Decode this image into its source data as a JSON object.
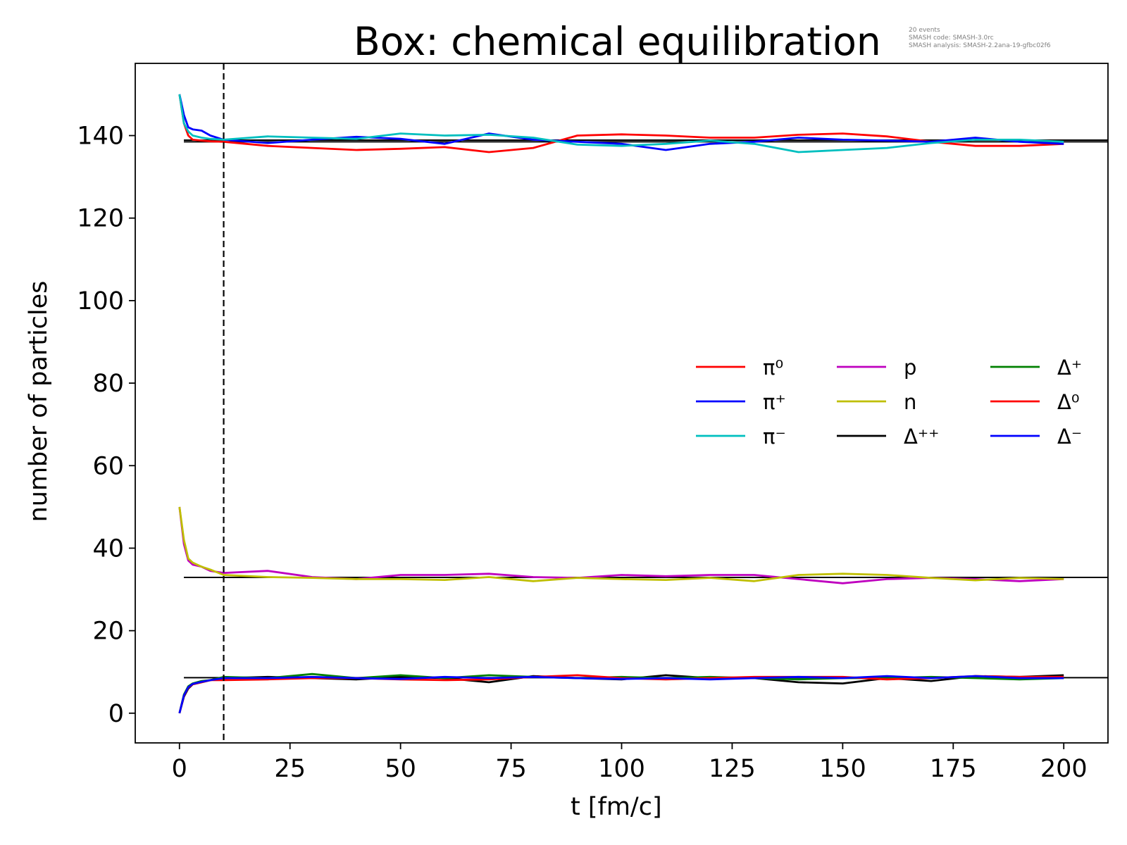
{
  "chart_data": {
    "type": "line",
    "title": "Box: chemical equilibration",
    "info_lines": [
      "20 events",
      "SMASH code:      SMASH-3.0rc",
      "SMASH analysis:  SMASH-2.2ana-19-gfbc02f6"
    ],
    "xlabel": "t [fm/c]",
    "ylabel": "number of particles",
    "xlim": [
      -10,
      210
    ],
    "ylim": [
      -7.2,
      157.5
    ],
    "xticks": [
      0,
      25,
      50,
      75,
      100,
      125,
      150,
      175,
      200
    ],
    "yticks": [
      0,
      20,
      40,
      60,
      80,
      100,
      120,
      140
    ],
    "grid": false,
    "legend_placement": "center-right",
    "legend_columns": 3,
    "vertical_marker": {
      "x": 10,
      "style": "dashed",
      "color": "#000000"
    },
    "equilibrium_lines": [
      {
        "group": "pions",
        "y": 138.5,
        "x_range": [
          1,
          210
        ],
        "color": "#000000"
      },
      {
        "group": "pions",
        "y": 138.9,
        "x_range": [
          1,
          210
        ],
        "color": "#000000"
      },
      {
        "group": "nucleons",
        "y": 32.9,
        "x_range": [
          1,
          210
        ],
        "color": "#000000"
      },
      {
        "group": "deltas",
        "y": 8.6,
        "x_range": [
          1,
          210
        ],
        "color": "#000000"
      }
    ],
    "series": [
      {
        "name": "π⁰",
        "color": "#ff0000",
        "group": "pions",
        "x": [
          0,
          1,
          2,
          3,
          5,
          7,
          10,
          20,
          30,
          40,
          50,
          60,
          70,
          80,
          90,
          100,
          110,
          120,
          130,
          140,
          150,
          160,
          170,
          180,
          190,
          200
        ],
        "y": [
          150,
          143,
          140,
          139,
          138.8,
          138.6,
          138.5,
          137.5,
          137,
          136.5,
          136.8,
          137.2,
          136,
          137,
          140,
          140.3,
          140,
          139.5,
          139.5,
          140.2,
          140.5,
          139.8,
          138.5,
          137.5,
          137.5,
          138
        ]
      },
      {
        "name": "π⁺",
        "color": "#0000ff",
        "group": "pions",
        "x": [
          0,
          1,
          2,
          3,
          5,
          7,
          10,
          20,
          30,
          40,
          50,
          60,
          70,
          80,
          90,
          100,
          110,
          120,
          130,
          140,
          150,
          160,
          170,
          180,
          190,
          200
        ],
        "y": [
          150,
          145,
          142,
          141.5,
          141.2,
          140,
          139,
          138.2,
          139,
          139.7,
          139.2,
          138,
          140.5,
          139,
          138.5,
          138,
          136.5,
          138,
          138.5,
          139.5,
          139,
          138.8,
          138.5,
          139.5,
          138.5,
          138
        ]
      },
      {
        "name": "π⁻",
        "color": "#00bfbf",
        "group": "pions",
        "x": [
          0,
          1,
          2,
          3,
          5,
          7,
          10,
          20,
          30,
          40,
          50,
          60,
          70,
          80,
          90,
          100,
          110,
          120,
          130,
          140,
          150,
          160,
          170,
          180,
          190,
          200
        ],
        "y": [
          150,
          143,
          141,
          140,
          139.5,
          139.2,
          139,
          139.8,
          139.5,
          139.2,
          140.5,
          140,
          140.2,
          139.5,
          137.8,
          137.5,
          138,
          138.8,
          138,
          136,
          136.5,
          137,
          138.2,
          139,
          139,
          138.5
        ]
      },
      {
        "name": "p",
        "color": "#bf00bf",
        "group": "nucleons",
        "x": [
          0,
          1,
          2,
          3,
          5,
          7,
          10,
          20,
          30,
          40,
          50,
          60,
          70,
          80,
          90,
          100,
          110,
          120,
          130,
          140,
          150,
          160,
          170,
          180,
          190,
          200
        ],
        "y": [
          50,
          41,
          37,
          36,
          35.5,
          34.5,
          34,
          34.5,
          33,
          32.5,
          33.5,
          33.5,
          33.8,
          33,
          32.8,
          33.5,
          33.2,
          33.5,
          33.5,
          32.5,
          31.5,
          32.5,
          32.8,
          32.5,
          32,
          32.5
        ]
      },
      {
        "name": "n",
        "color": "#bfbf00",
        "group": "nucleons",
        "x": [
          0,
          1,
          2,
          3,
          5,
          7,
          10,
          20,
          30,
          40,
          50,
          60,
          70,
          80,
          90,
          100,
          110,
          120,
          130,
          140,
          150,
          160,
          170,
          180,
          190,
          200
        ],
        "y": [
          50,
          42,
          37.5,
          36.5,
          35.5,
          34.8,
          33.5,
          33,
          32.8,
          32.5,
          32.5,
          32.3,
          33,
          32,
          32.8,
          32.5,
          32.3,
          32.8,
          32,
          33.5,
          33.8,
          33.5,
          32.8,
          32.2,
          32.8,
          32.5
        ]
      },
      {
        "name": "Δ⁺⁺",
        "color": "#000000",
        "group": "deltas",
        "x": [
          0,
          1,
          2,
          3,
          5,
          7,
          10,
          20,
          30,
          40,
          50,
          60,
          70,
          80,
          90,
          100,
          110,
          120,
          130,
          140,
          150,
          160,
          170,
          180,
          190,
          200
        ],
        "y": [
          0,
          4,
          6,
          7,
          7.5,
          8,
          8.5,
          8.8,
          8.5,
          8.2,
          8.8,
          8.5,
          7.5,
          9,
          8.5,
          8.2,
          9.2,
          8.5,
          8.5,
          7.5,
          7.2,
          8.5,
          7.8,
          9,
          8.8,
          9.2
        ]
      },
      {
        "name": "Δ⁺",
        "color": "#008000",
        "group": "deltas",
        "x": [
          0,
          1,
          2,
          3,
          5,
          7,
          10,
          20,
          30,
          40,
          50,
          60,
          70,
          80,
          90,
          100,
          110,
          120,
          130,
          140,
          150,
          160,
          170,
          180,
          190,
          200
        ],
        "y": [
          0,
          4.5,
          6.5,
          7.2,
          7.8,
          8,
          8.8,
          8.5,
          9.5,
          8.5,
          9.2,
          8.5,
          9.2,
          8.8,
          8.5,
          8.8,
          8.5,
          8.8,
          8.5,
          8.2,
          8.5,
          8.5,
          8.8,
          8.5,
          8.2,
          8.5
        ]
      },
      {
        "name": "Δ⁰",
        "color": "#ff0000",
        "group": "deltas",
        "x": [
          0,
          1,
          2,
          3,
          5,
          7,
          10,
          20,
          30,
          40,
          50,
          60,
          70,
          80,
          90,
          100,
          110,
          120,
          130,
          140,
          150,
          160,
          170,
          180,
          190,
          200
        ],
        "y": [
          0,
          4.2,
          6.2,
          7,
          7.5,
          8,
          8,
          8.2,
          8.5,
          8.5,
          8.2,
          8,
          8.2,
          8.8,
          9.2,
          8.5,
          8.2,
          8.5,
          8.8,
          8.8,
          8.8,
          8.2,
          8.5,
          9,
          8.8,
          8.8
        ]
      },
      {
        "name": "Δ⁻",
        "color": "#0000ff",
        "group": "deltas",
        "x": [
          0,
          1,
          2,
          3,
          5,
          7,
          10,
          20,
          30,
          40,
          50,
          60,
          70,
          80,
          90,
          100,
          110,
          120,
          130,
          140,
          150,
          160,
          170,
          180,
          190,
          200
        ],
        "y": [
          0,
          4.3,
          6.3,
          7.1,
          7.6,
          8,
          8.5,
          8.5,
          8.8,
          8.5,
          8.3,
          8.8,
          8.5,
          8.8,
          8.5,
          8.3,
          8.5,
          8.2,
          8.5,
          8.8,
          8.5,
          9,
          8.5,
          9,
          8.5,
          8.5
        ]
      }
    ]
  }
}
